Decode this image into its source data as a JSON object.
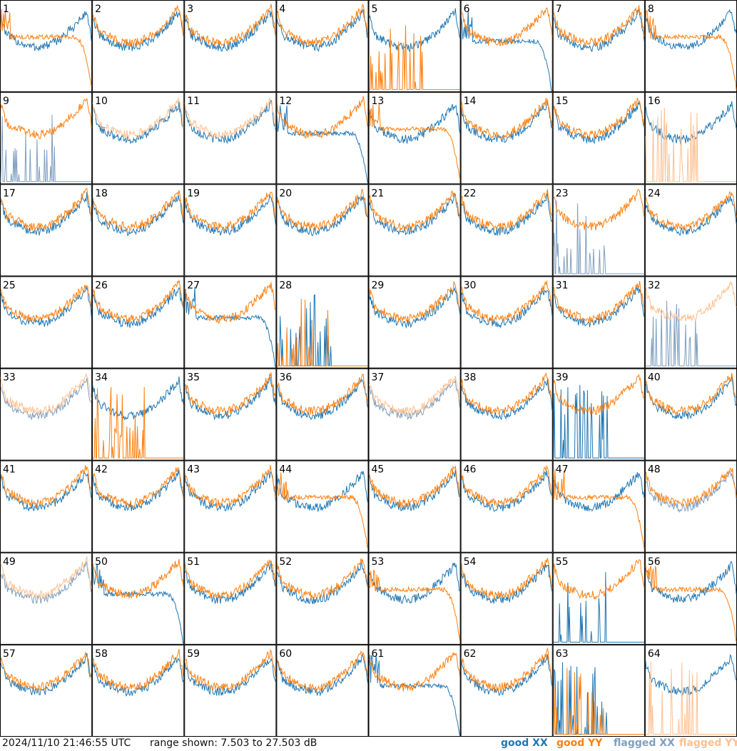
{
  "footer": {
    "timestamp": "2024/11/10 21:46:55 UTC",
    "range_text": "range shown: 7.503 to 27.503 dB"
  },
  "legend": [
    {
      "key": "good_xx",
      "label": "good XX",
      "color": "#1f77b4"
    },
    {
      "key": "good_yy",
      "label": "good YY",
      "color": "#ff7f0e"
    },
    {
      "key": "flagged_xx",
      "label": "flagged XX",
      "color": "#7f9fbf"
    },
    {
      "key": "flagged_yy",
      "label": "flagged YY",
      "color": "#ffbf8f"
    }
  ],
  "chart_data": {
    "type": "line",
    "ylim": [
      7.503,
      27.503
    ],
    "layout_cols": 8,
    "layout_rows": 8,
    "panels": [
      {
        "id": "1",
        "xx": "good",
        "yy": "good",
        "xx_shape": "normal",
        "yy_shape": "rolloff"
      },
      {
        "id": "2",
        "xx": "good",
        "yy": "good",
        "xx_shape": "normal",
        "yy_shape": "normal"
      },
      {
        "id": "3",
        "xx": "good",
        "yy": "good",
        "xx_shape": "normal",
        "yy_shape": "normal"
      },
      {
        "id": "4",
        "xx": "good",
        "yy": "good",
        "xx_shape": "normal",
        "yy_shape": "normal"
      },
      {
        "id": "5",
        "xx": "good",
        "yy": "good",
        "xx_shape": "normal",
        "yy_shape": "spikes"
      },
      {
        "id": "6",
        "xx": "good",
        "yy": "good",
        "xx_shape": "rolloff",
        "yy_shape": "normal"
      },
      {
        "id": "7",
        "xx": "good",
        "yy": "good",
        "xx_shape": "normal",
        "yy_shape": "normal"
      },
      {
        "id": "8",
        "xx": "good",
        "yy": "good",
        "xx_shape": "normal",
        "yy_shape": "rolloff"
      },
      {
        "id": "9",
        "xx": "flagged",
        "yy": "good",
        "xx_shape": "spikes",
        "yy_shape": "normal"
      },
      {
        "id": "10",
        "xx": "good",
        "yy": "flagged",
        "xx_shape": "normal",
        "yy_shape": "normal"
      },
      {
        "id": "11",
        "xx": "good",
        "yy": "flagged",
        "xx_shape": "normal",
        "yy_shape": "normal"
      },
      {
        "id": "12",
        "xx": "good",
        "yy": "good",
        "xx_shape": "rolloff",
        "yy_shape": "normal"
      },
      {
        "id": "13",
        "xx": "good",
        "yy": "good",
        "xx_shape": "normal",
        "yy_shape": "rolloff"
      },
      {
        "id": "14",
        "xx": "good",
        "yy": "good",
        "xx_shape": "normal",
        "yy_shape": "normal"
      },
      {
        "id": "15",
        "xx": "good",
        "yy": "good",
        "xx_shape": "normal",
        "yy_shape": "normal"
      },
      {
        "id": "16",
        "xx": "good",
        "yy": "flagged",
        "xx_shape": "normal",
        "yy_shape": "spikes"
      },
      {
        "id": "17",
        "xx": "good",
        "yy": "good",
        "xx_shape": "normal",
        "yy_shape": "normal"
      },
      {
        "id": "18",
        "xx": "good",
        "yy": "good",
        "xx_shape": "normal",
        "yy_shape": "normal"
      },
      {
        "id": "19",
        "xx": "good",
        "yy": "good",
        "xx_shape": "normal",
        "yy_shape": "normal"
      },
      {
        "id": "20",
        "xx": "good",
        "yy": "good",
        "xx_shape": "normal",
        "yy_shape": "normal"
      },
      {
        "id": "21",
        "xx": "good",
        "yy": "good",
        "xx_shape": "normal",
        "yy_shape": "normal"
      },
      {
        "id": "22",
        "xx": "good",
        "yy": "good",
        "xx_shape": "normal",
        "yy_shape": "normal"
      },
      {
        "id": "23",
        "xx": "flagged",
        "yy": "good",
        "xx_shape": "spikes",
        "yy_shape": "normal"
      },
      {
        "id": "24",
        "xx": "good",
        "yy": "good",
        "xx_shape": "normal",
        "yy_shape": "normal"
      },
      {
        "id": "25",
        "xx": "good",
        "yy": "good",
        "xx_shape": "normal",
        "yy_shape": "normal"
      },
      {
        "id": "26",
        "xx": "good",
        "yy": "good",
        "xx_shape": "normal",
        "yy_shape": "normal"
      },
      {
        "id": "27",
        "xx": "good",
        "yy": "good",
        "xx_shape": "rolloff",
        "yy_shape": "normal"
      },
      {
        "id": "28",
        "xx": "good",
        "yy": "good",
        "xx_shape": "spikes",
        "yy_shape": "spikes"
      },
      {
        "id": "29",
        "xx": "good",
        "yy": "good",
        "xx_shape": "normal",
        "yy_shape": "normal"
      },
      {
        "id": "30",
        "xx": "good",
        "yy": "good",
        "xx_shape": "normal",
        "yy_shape": "normal"
      },
      {
        "id": "31",
        "xx": "good",
        "yy": "good",
        "xx_shape": "normal",
        "yy_shape": "normal"
      },
      {
        "id": "32",
        "xx": "flagged",
        "yy": "flagged",
        "xx_shape": "spikes",
        "yy_shape": "normal"
      },
      {
        "id": "33",
        "xx": "flagged",
        "yy": "flagged",
        "xx_shape": "normal",
        "yy_shape": "normal"
      },
      {
        "id": "34",
        "xx": "good",
        "yy": "good",
        "xx_shape": "normal",
        "yy_shape": "spikes"
      },
      {
        "id": "35",
        "xx": "good",
        "yy": "good",
        "xx_shape": "normal",
        "yy_shape": "normal"
      },
      {
        "id": "36",
        "xx": "good",
        "yy": "good",
        "xx_shape": "normal",
        "yy_shape": "normal"
      },
      {
        "id": "37",
        "xx": "flagged",
        "yy": "flagged",
        "xx_shape": "normal",
        "yy_shape": "normal"
      },
      {
        "id": "38",
        "xx": "good",
        "yy": "good",
        "xx_shape": "normal",
        "yy_shape": "normal"
      },
      {
        "id": "39",
        "xx": "good",
        "yy": "good",
        "xx_shape": "spikes",
        "yy_shape": "normal"
      },
      {
        "id": "40",
        "xx": "good",
        "yy": "good",
        "xx_shape": "normal",
        "yy_shape": "normal"
      },
      {
        "id": "41",
        "xx": "good",
        "yy": "good",
        "xx_shape": "normal",
        "yy_shape": "normal"
      },
      {
        "id": "42",
        "xx": "good",
        "yy": "good",
        "xx_shape": "normal",
        "yy_shape": "normal"
      },
      {
        "id": "43",
        "xx": "good",
        "yy": "good",
        "xx_shape": "normal",
        "yy_shape": "normal"
      },
      {
        "id": "44",
        "xx": "good",
        "yy": "good",
        "xx_shape": "normal",
        "yy_shape": "rolloff"
      },
      {
        "id": "45",
        "xx": "good",
        "yy": "good",
        "xx_shape": "normal",
        "yy_shape": "normal"
      },
      {
        "id": "46",
        "xx": "good",
        "yy": "good",
        "xx_shape": "normal",
        "yy_shape": "normal"
      },
      {
        "id": "47",
        "xx": "good",
        "yy": "good",
        "xx_shape": "normal",
        "yy_shape": "rolloff"
      },
      {
        "id": "48",
        "xx": "flagged",
        "yy": "good",
        "xx_shape": "normal",
        "yy_shape": "normal"
      },
      {
        "id": "49",
        "xx": "flagged",
        "yy": "flagged",
        "xx_shape": "normal",
        "yy_shape": "normal"
      },
      {
        "id": "50",
        "xx": "good",
        "yy": "good",
        "xx_shape": "rolloff",
        "yy_shape": "normal"
      },
      {
        "id": "51",
        "xx": "good",
        "yy": "good",
        "xx_shape": "normal",
        "yy_shape": "normal"
      },
      {
        "id": "52",
        "xx": "good",
        "yy": "good",
        "xx_shape": "normal",
        "yy_shape": "normal"
      },
      {
        "id": "53",
        "xx": "good",
        "yy": "good",
        "xx_shape": "normal",
        "yy_shape": "rolloff"
      },
      {
        "id": "54",
        "xx": "good",
        "yy": "good",
        "xx_shape": "normal",
        "yy_shape": "normal"
      },
      {
        "id": "55",
        "xx": "good",
        "yy": "good",
        "xx_shape": "spikes",
        "yy_shape": "normal"
      },
      {
        "id": "56",
        "xx": "good",
        "yy": "good",
        "xx_shape": "normal",
        "yy_shape": "rolloff"
      },
      {
        "id": "57",
        "xx": "good",
        "yy": "good",
        "xx_shape": "normal",
        "yy_shape": "normal"
      },
      {
        "id": "58",
        "xx": "good",
        "yy": "good",
        "xx_shape": "normal",
        "yy_shape": "normal"
      },
      {
        "id": "59",
        "xx": "good",
        "yy": "good",
        "xx_shape": "normal",
        "yy_shape": "normal"
      },
      {
        "id": "60",
        "xx": "good",
        "yy": "good",
        "xx_shape": "normal",
        "yy_shape": "normal"
      },
      {
        "id": "61",
        "xx": "good",
        "yy": "good",
        "xx_shape": "rolloff",
        "yy_shape": "normal"
      },
      {
        "id": "62",
        "xx": "good",
        "yy": "good",
        "xx_shape": "normal",
        "yy_shape": "normal"
      },
      {
        "id": "63",
        "xx": "good",
        "yy": "good",
        "xx_shape": "spikes",
        "yy_shape": "spikes"
      },
      {
        "id": "64",
        "xx": "good",
        "yy": "flagged",
        "xx_shape": "normal",
        "yy_shape": "spikes"
      }
    ]
  }
}
